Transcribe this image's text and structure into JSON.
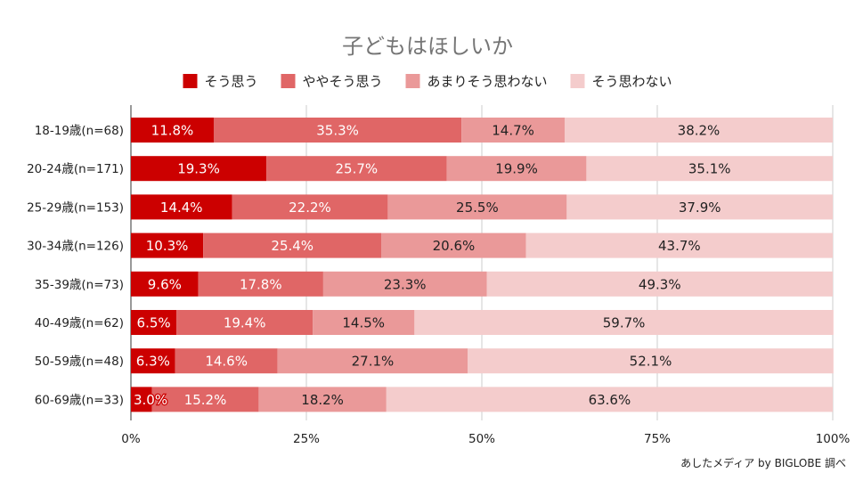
{
  "chart_data": {
    "type": "bar",
    "orientation": "horizontal",
    "stacked": "percent",
    "title": "子どもはほしいか",
    "categories": [
      "18-19歳(n=68)",
      "20-24歳(n=171)",
      "25-29歳(n=153)",
      "30-34歳(n=126)",
      "35-39歳(n=73)",
      "40-49歳(n=62)",
      "50-59歳(n=48)",
      "60-69歳(n=33)"
    ],
    "series": [
      {
        "name": "そう思う",
        "color": "#cc0000",
        "values": [
          11.8,
          19.3,
          14.4,
          10.3,
          9.6,
          6.5,
          6.3,
          3.0
        ],
        "labels": [
          "11.8%",
          "19.3%",
          "14.4%",
          "10.3%",
          "9.6%",
          "6.5%",
          "6.3%",
          "3.0%"
        ]
      },
      {
        "name": "ややそう思う",
        "color": "#e06666",
        "values": [
          35.3,
          25.7,
          22.2,
          25.4,
          17.8,
          19.4,
          14.6,
          15.2
        ],
        "labels": [
          "35.3%",
          "25.7%",
          "22.2%",
          "25.4%",
          "17.8%",
          "19.4%",
          "14.6%",
          "15.2%"
        ]
      },
      {
        "name": "あまりそう思わない",
        "color": "#ea9999",
        "values": [
          14.7,
          19.9,
          25.5,
          20.6,
          23.3,
          14.5,
          27.1,
          18.2
        ],
        "labels": [
          "14.7%",
          "19.9%",
          "25.5%",
          "20.6%",
          "23.3%",
          "14.5%",
          "27.1%",
          "18.2%"
        ]
      },
      {
        "name": "そう思わない",
        "color": "#f4cccc",
        "values": [
          38.2,
          35.1,
          37.9,
          43.7,
          49.3,
          59.7,
          52.1,
          63.6
        ],
        "labels": [
          "38.2%",
          "35.1%",
          "37.9%",
          "43.7%",
          "49.3%",
          "59.7%",
          "52.1%",
          "63.6%"
        ]
      }
    ],
    "xlim": [
      0,
      100
    ],
    "xticks": [
      "0%",
      "25%",
      "50%",
      "75%",
      "100%"
    ],
    "grid": true,
    "legend_position": "top",
    "label_colors": [
      "#ffffff",
      "#ffffff",
      "#222222",
      "#222222"
    ]
  },
  "source_note": "あしたメディア by BIGLOBE 調べ"
}
